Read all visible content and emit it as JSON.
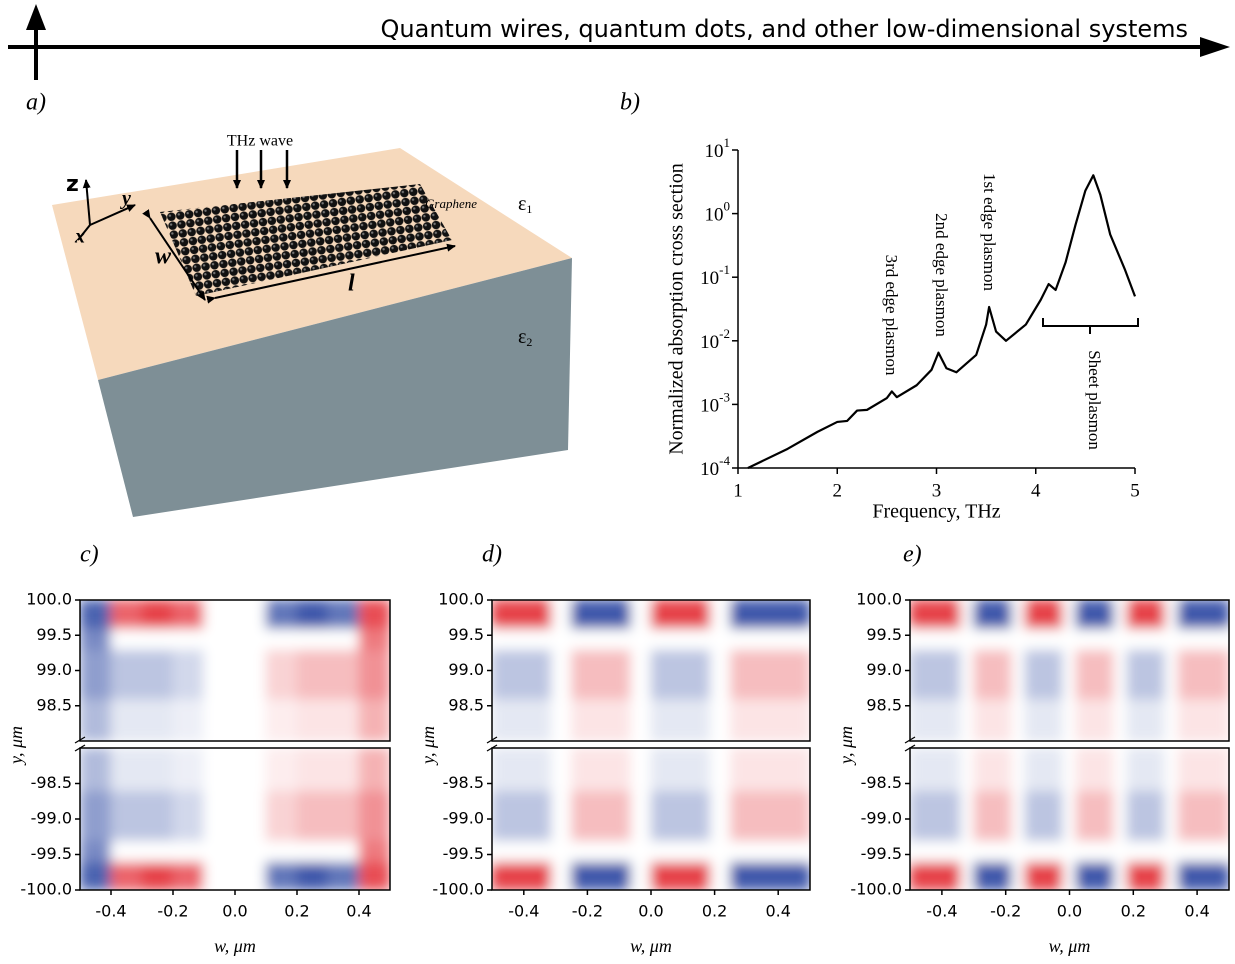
{
  "header": {
    "title": "Quantum wires, quantum dots, and other low-dimensional systems"
  },
  "figure_a": {
    "panel_label": "a)",
    "incident": "THz wave",
    "material": "Graphene",
    "eps_top": {
      "symbol": "ε",
      "subscript": "1"
    },
    "eps_bottom": {
      "symbol": "ε",
      "subscript": "2"
    },
    "axis_z": "z",
    "axis_y": "y",
    "axis_x": "x",
    "width_label": "w",
    "length_label": "l"
  },
  "chart_data": [
    {
      "type": "line",
      "panel_label": "b)",
      "xlabel": "Frequency, THz",
      "ylabel": "Normalized absorption cross section",
      "log_y": true,
      "xlim": [
        1,
        5
      ],
      "xticks": [
        1,
        2,
        3,
        4,
        5
      ],
      "ylim": [
        0.0001,
        10
      ],
      "yticks": [
        {
          "value": 0.0001,
          "label": "10",
          "exponent": "-4"
        },
        {
          "value": 0.001,
          "label": "10",
          "exponent": "-3"
        },
        {
          "value": 0.01,
          "label": "10",
          "exponent": "-2"
        },
        {
          "value": 0.1,
          "label": "10",
          "exponent": "-1"
        },
        {
          "value": 1,
          "label": "10",
          "exponent": "0"
        },
        {
          "value": 10,
          "label": "10",
          "exponent": "1"
        }
      ],
      "x": [
        1.1,
        1.5,
        1.8,
        2.0,
        2.1,
        2.2,
        2.3,
        2.5,
        2.55,
        2.6,
        2.8,
        2.95,
        3.02,
        3.1,
        3.2,
        3.4,
        3.5,
        3.53,
        3.6,
        3.7,
        3.9,
        4.05,
        4.13,
        4.2,
        4.3,
        4.4,
        4.5,
        4.58,
        4.65,
        4.75,
        4.9,
        5.0
      ],
      "series": [
        {
          "color": "#000000",
          "values": [
            0.0001,
            0.0002,
            0.00037,
            0.00053,
            0.00055,
            0.0008,
            0.00082,
            0.00126,
            0.0016,
            0.0013,
            0.002,
            0.0035,
            0.0065,
            0.0037,
            0.0032,
            0.006,
            0.018,
            0.034,
            0.014,
            0.01,
            0.018,
            0.044,
            0.078,
            0.063,
            0.17,
            0.66,
            2.3,
            4.0,
            2.0,
            0.47,
            0.13,
            0.05
          ]
        }
      ],
      "annotations": [
        "3rd edge plasmon",
        "2nd edge plasmon",
        "1st edge plasmon",
        "Sheet plasmon"
      ]
    },
    {
      "type": "heatmap",
      "panel_label": "c)",
      "xlabel": "w, μm",
      "ylabel": "y, μm",
      "xlim": [
        -0.5,
        0.5
      ],
      "xticks": [
        -0.4,
        -0.2,
        {
          "value": 0,
          "label": "0.0"
        },
        0.2,
        0.4
      ],
      "xbins": [
        -0.5,
        -0.4,
        -0.3,
        -0.2,
        -0.1,
        0,
        0.1,
        0.2,
        0.3,
        0.4,
        0.5
      ],
      "zlim": [
        -1,
        1
      ],
      "colors": {
        "negative": "#1f3c9c",
        "positive": "#e2222a"
      },
      "segments": [
        {
          "ylim": [
            -100,
            -98
          ],
          "yticks": [
            {
              "value": -100,
              "label": "-100.0"
            },
            -99.5,
            {
              "value": -99,
              "label": "-99.0"
            },
            -98.5
          ],
          "ybins": [
            -100,
            -99.6,
            -99.3,
            -98.6,
            -98
          ],
          "z": [
            [
              -0.8,
              0.7,
              0.85,
              0.7,
              0,
              0,
              -0.7,
              -0.85,
              -0.7,
              0.8
            ],
            [
              -0.6,
              0,
              0,
              0,
              0,
              0,
              0,
              0,
              0,
              0.6
            ],
            [
              -0.5,
              -0.3,
              -0.3,
              -0.2,
              0,
              0,
              0.2,
              0.3,
              0.3,
              0.5
            ],
            [
              -0.35,
              -0.12,
              -0.12,
              -0.08,
              0,
              0,
              0.08,
              0.12,
              0.12,
              0.35
            ]
          ]
        },
        {
          "ylim": [
            98,
            100
          ],
          "yticks": [
            98.5,
            {
              "value": 99,
              "label": "99.0"
            },
            99.5,
            {
              "value": 100,
              "label": "100.0"
            }
          ],
          "ybins": [
            98,
            98.6,
            99.3,
            99.6,
            100
          ],
          "z": [
            [
              -0.35,
              -0.12,
              -0.12,
              -0.08,
              0,
              0,
              0.08,
              0.12,
              0.12,
              0.35
            ],
            [
              -0.5,
              -0.3,
              -0.3,
              -0.2,
              0,
              0,
              0.2,
              0.3,
              0.3,
              0.5
            ],
            [
              -0.6,
              0,
              0,
              0,
              0,
              0,
              0,
              0,
              0,
              0.6
            ],
            [
              -0.8,
              0.7,
              0.85,
              0.7,
              0,
              0,
              -0.7,
              -0.85,
              -0.7,
              0.8
            ]
          ]
        }
      ]
    },
    {
      "type": "heatmap",
      "panel_label": "d)",
      "xlabel": "w, μm",
      "ylabel": "y, μm",
      "xlim": [
        -0.5,
        0.5
      ],
      "xticks": [
        -0.4,
        -0.2,
        {
          "value": 0,
          "label": "0.0"
        },
        0.2,
        0.4
      ],
      "xbins": [
        -0.5,
        -0.4375,
        -0.375,
        -0.3125,
        -0.25,
        -0.1875,
        -0.125,
        -0.0625,
        0,
        0.0625,
        0.125,
        0.1875,
        0.25,
        0.3125,
        0.375,
        0.4375,
        0.5
      ],
      "zlim": [
        -1,
        1
      ],
      "colors": {
        "negative": "#1f3c9c",
        "positive": "#e2222a"
      },
      "segments": [
        {
          "ylim": [
            -100,
            -98
          ],
          "yticks": [
            {
              "value": -100,
              "label": "-100.0"
            },
            -99.5,
            {
              "value": -99,
              "label": "-99.0"
            },
            -98.5
          ],
          "ybins": [
            -100,
            -99.6,
            -99.3,
            -98.6,
            -98
          ],
          "z": [
            [
              0.85,
              0.85,
              0.85,
              0,
              -0.85,
              -0.85,
              -0.85,
              0,
              0.85,
              0.85,
              0.85,
              0,
              -0.85,
              -0.85,
              -0.85,
              -0.85
            ],
            [
              0,
              0,
              0,
              0,
              0,
              0,
              0,
              0,
              0,
              0,
              0,
              0,
              0,
              0,
              0,
              0
            ],
            [
              -0.3,
              -0.3,
              -0.3,
              0,
              0.3,
              0.3,
              0.3,
              0,
              -0.3,
              -0.3,
              -0.3,
              0,
              0.3,
              0.3,
              0.3,
              0.3
            ],
            [
              -0.12,
              -0.12,
              -0.12,
              0,
              0.12,
              0.12,
              0.12,
              0,
              -0.12,
              -0.12,
              -0.12,
              0,
              0.12,
              0.12,
              0.12,
              0.12
            ]
          ]
        },
        {
          "ylim": [
            98,
            100
          ],
          "yticks": [
            98.5,
            {
              "value": 99,
              "label": "99.0"
            },
            99.5,
            {
              "value": 100,
              "label": "100.0"
            }
          ],
          "ybins": [
            98,
            98.6,
            99.3,
            99.6,
            100
          ],
          "z": [
            [
              -0.12,
              -0.12,
              -0.12,
              0,
              0.12,
              0.12,
              0.12,
              0,
              -0.12,
              -0.12,
              -0.12,
              0,
              0.12,
              0.12,
              0.12,
              0.12
            ],
            [
              -0.3,
              -0.3,
              -0.3,
              0,
              0.3,
              0.3,
              0.3,
              0,
              -0.3,
              -0.3,
              -0.3,
              0,
              0.3,
              0.3,
              0.3,
              0.3
            ],
            [
              0,
              0,
              0,
              0,
              0,
              0,
              0,
              0,
              0,
              0,
              0,
              0,
              0,
              0,
              0,
              0
            ],
            [
              0.85,
              0.85,
              0.85,
              0,
              -0.85,
              -0.85,
              -0.85,
              0,
              0.85,
              0.85,
              0.85,
              0,
              -0.85,
              -0.85,
              -0.85,
              -0.85
            ]
          ]
        }
      ]
    },
    {
      "type": "heatmap",
      "panel_label": "e)",
      "xlabel": "w, μm",
      "ylabel": "y, μm",
      "xlim": [
        -0.5,
        0.5
      ],
      "xticks": [
        -0.4,
        -0.2,
        {
          "value": 0,
          "label": "0.0"
        },
        0.2,
        0.4
      ],
      "xbins": [
        -0.5,
        -0.46,
        -0.42,
        -0.38,
        -0.34,
        -0.3,
        -0.26,
        -0.22,
        -0.18,
        -0.14,
        -0.1,
        -0.06,
        -0.02,
        0.02,
        0.06,
        0.1,
        0.14,
        0.18,
        0.22,
        0.26,
        0.3,
        0.34,
        0.38,
        0.42,
        0.46,
        0.5
      ],
      "zlim": [
        -1,
        1
      ],
      "colors": {
        "negative": "#1f3c9c",
        "positive": "#e2222a"
      },
      "segments": [
        {
          "ylim": [
            -100,
            -98
          ],
          "yticks": [
            {
              "value": -100,
              "label": "-100.0"
            },
            -99.5,
            {
              "value": -99,
              "label": "-99.0"
            },
            -98.5
          ],
          "ybins": [
            -100,
            -99.6,
            -99.3,
            -98.6,
            -98
          ],
          "z": [
            [
              0.85,
              0.85,
              0.85,
              0.85,
              0,
              -0.85,
              -0.85,
              -0.85,
              0,
              0.85,
              0.85,
              0.85,
              0,
              -0.85,
              -0.85,
              -0.85,
              0,
              0.85,
              0.85,
              0.85,
              0,
              -0.85,
              -0.85,
              -0.85,
              -0.85
            ],
            [
              0,
              0,
              0,
              0,
              0,
              0,
              0,
              0,
              0,
              0,
              0,
              0,
              0,
              0,
              0,
              0,
              0,
              0,
              0,
              0,
              0,
              0,
              0,
              0,
              0
            ],
            [
              -0.3,
              -0.3,
              -0.3,
              -0.3,
              0,
              0.3,
              0.3,
              0.3,
              0,
              -0.3,
              -0.3,
              -0.3,
              0,
              0.3,
              0.3,
              0.3,
              0,
              -0.3,
              -0.3,
              -0.3,
              0,
              0.3,
              0.3,
              0.3,
              0.3
            ],
            [
              -0.12,
              -0.12,
              -0.12,
              -0.12,
              0,
              0.12,
              0.12,
              0.12,
              0,
              -0.12,
              -0.12,
              -0.12,
              0,
              0.12,
              0.12,
              0.12,
              0,
              -0.12,
              -0.12,
              -0.12,
              0,
              0.12,
              0.12,
              0.12,
              0.12
            ]
          ]
        },
        {
          "ylim": [
            98,
            100
          ],
          "yticks": [
            98.5,
            {
              "value": 99,
              "label": "99.0"
            },
            99.5,
            {
              "value": 100,
              "label": "100.0"
            }
          ],
          "ybins": [
            98,
            98.6,
            99.3,
            99.6,
            100
          ],
          "z": [
            [
              -0.12,
              -0.12,
              -0.12,
              -0.12,
              0,
              0.12,
              0.12,
              0.12,
              0,
              -0.12,
              -0.12,
              -0.12,
              0,
              0.12,
              0.12,
              0.12,
              0,
              -0.12,
              -0.12,
              -0.12,
              0,
              0.12,
              0.12,
              0.12,
              0.12
            ],
            [
              -0.3,
              -0.3,
              -0.3,
              -0.3,
              0,
              0.3,
              0.3,
              0.3,
              0,
              -0.3,
              -0.3,
              -0.3,
              0,
              0.3,
              0.3,
              0.3,
              0,
              -0.3,
              -0.3,
              -0.3,
              0,
              0.3,
              0.3,
              0.3,
              0.3
            ],
            [
              0,
              0,
              0,
              0,
              0,
              0,
              0,
              0,
              0,
              0,
              0,
              0,
              0,
              0,
              0,
              0,
              0,
              0,
              0,
              0,
              0,
              0,
              0,
              0,
              0
            ],
            [
              0.85,
              0.85,
              0.85,
              0.85,
              0,
              -0.85,
              -0.85,
              -0.85,
              0,
              0.85,
              0.85,
              0.85,
              0,
              -0.85,
              -0.85,
              -0.85,
              0,
              0.85,
              0.85,
              0.85,
              0,
              -0.85,
              -0.85,
              -0.85,
              -0.85
            ]
          ]
        }
      ]
    }
  ]
}
